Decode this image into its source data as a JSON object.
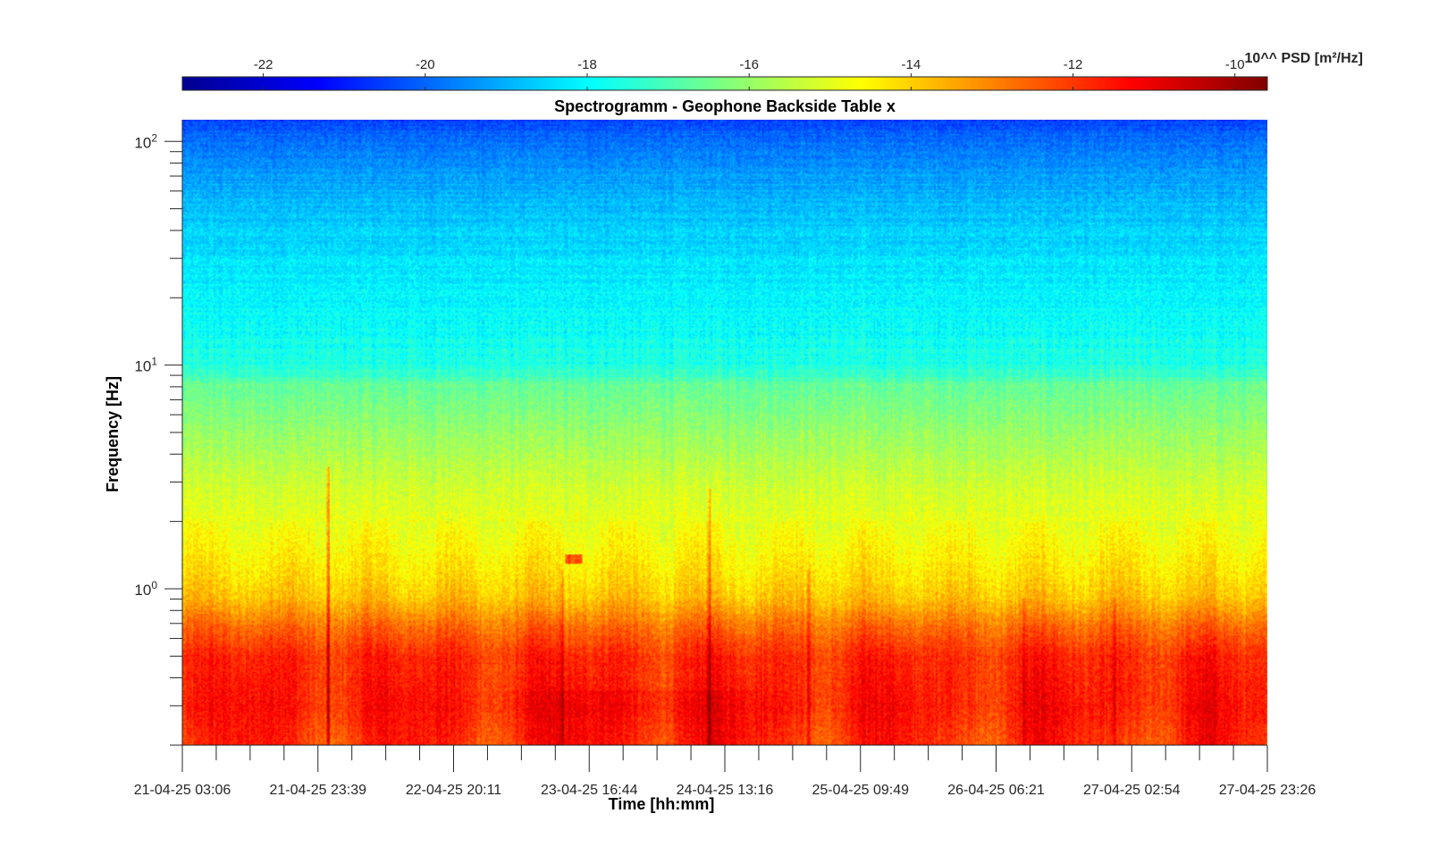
{
  "chart_data": {
    "type": "heatmap",
    "title": "Spectrogramm - Geophone Backside Table x",
    "xlabel": "Time [hh:mm]",
    "ylabel": "Frequency [Hz]",
    "yscale": "log",
    "ylim_hz": [
      0.2,
      125
    ],
    "y_ticks": [
      {
        "value": 1,
        "label_base": "10",
        "label_exp": "0"
      },
      {
        "value": 10,
        "label_base": "10",
        "label_exp": "1"
      },
      {
        "value": 100,
        "label_base": "10",
        "label_exp": "2"
      }
    ],
    "x_ticks": [
      "21-04-25 03:06",
      "21-04-25 23:39",
      "22-04-25 20:11",
      "23-04-25 16:44",
      "24-04-25 13:16",
      "25-04-25 09:49",
      "26-04-25 06:21",
      "27-04-25 02:54",
      "27-04-25 23:26"
    ],
    "x_minor_per_major": 3,
    "colorbar": {
      "label": "10^^ PSD [m²/Hz]",
      "range": [
        -23,
        -9.6
      ],
      "ticks": [
        -22,
        -20,
        -18,
        -16,
        -14,
        -12,
        -10
      ],
      "colormap": "jet"
    },
    "psd_profile": {
      "note_freq_hz": [
        0.2,
        0.3,
        0.5,
        0.7,
        0.9,
        1.2,
        2,
        3,
        5,
        8,
        10,
        15,
        30,
        60,
        100,
        125
      ],
      "log10_psd": [
        -11.9,
        -11.6,
        -11.8,
        -12.8,
        -13.8,
        -14.3,
        -14.9,
        -15.3,
        -16.0,
        -16.6,
        -17.6,
        -17.9,
        -18.3,
        -19.0,
        -19.8,
        -20.4
      ]
    },
    "events": [
      {
        "time": "21-04-25 21:10",
        "type": "broadband spike"
      },
      {
        "time": "23-04-25 12:30",
        "type": "narrowband burst",
        "freq_hz": 1.35
      },
      {
        "time": "24-04-25 10:00",
        "type": "broadband spike"
      },
      {
        "time": "25-04-25 04:30",
        "type": "spike"
      }
    ]
  }
}
